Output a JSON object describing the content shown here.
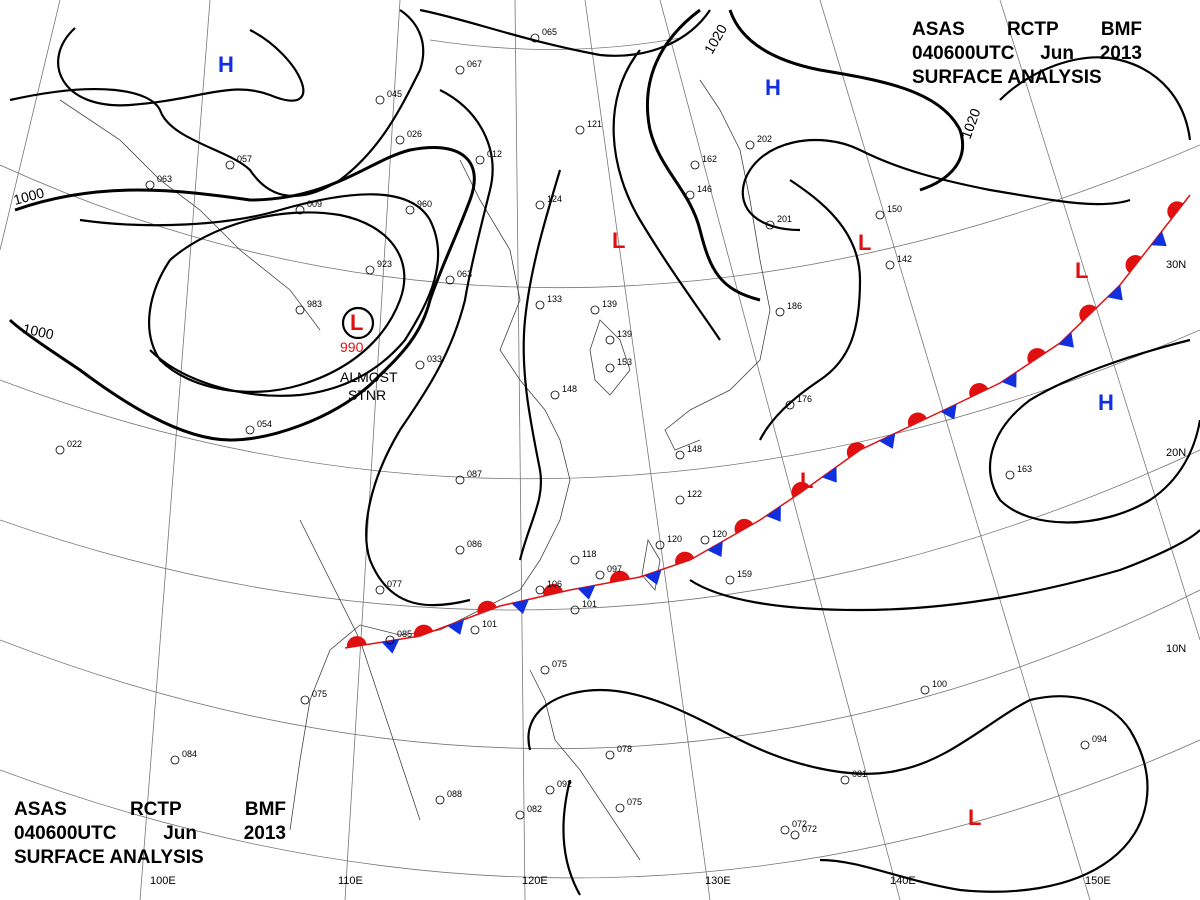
{
  "title_top_right": {
    "agency": "ASAS",
    "station": "RCTP",
    "unit": "BMF",
    "time": "040600UTC",
    "month": "Jun",
    "year": "2013",
    "product": "SURFACE ANALYSIS"
  },
  "title_bottom_left": {
    "agency": "ASAS",
    "station": "RCTP",
    "unit": "BMF",
    "time": "040600UTC",
    "month": "Jun",
    "year": "2013",
    "product": "SURFACE ANALYSIS"
  },
  "pressure_systems": [
    {
      "type": "H",
      "color": "#1030e0"
    },
    {
      "type": "H",
      "color": "#1030e0"
    },
    {
      "type": "H",
      "color": "#1030e0"
    },
    {
      "type": "L",
      "color": "#e01010",
      "central_pressure": "990"
    },
    {
      "type": "L",
      "color": "#e01010"
    },
    {
      "type": "L",
      "color": "#e01010"
    },
    {
      "type": "L",
      "color": "#e01010"
    },
    {
      "type": "L",
      "color": "#e01010"
    },
    {
      "type": "L",
      "color": "#e01010"
    }
  ],
  "annotation": {
    "line1": "ALMOST",
    "line2": "STNR"
  },
  "isobar_labels": [
    "1000",
    "1000",
    "1020",
    "1020"
  ],
  "lon_labels": [
    "100E",
    "110E",
    "120E",
    "130E",
    "140E",
    "150E"
  ],
  "lat_labels": [
    "30N",
    "20N",
    "10N"
  ],
  "front": {
    "type": "stationary",
    "warm_color": "#e01010",
    "cold_color": "#1030e0"
  },
  "station_numbers": [
    "065",
    "067",
    "045",
    "026",
    "009",
    "057",
    "063",
    "923",
    "983",
    "960",
    "012",
    "121",
    "124",
    "133",
    "139",
    "139",
    "153",
    "146",
    "162",
    "202",
    "201",
    "150",
    "186",
    "176",
    "148",
    "122",
    "120",
    "118",
    "106",
    "097",
    "101",
    "101",
    "086",
    "087",
    "085",
    "077",
    "075",
    "075",
    "084",
    "078",
    "072",
    "088",
    "082",
    "092",
    "075",
    "159",
    "163",
    "120",
    "100",
    "094",
    "081",
    "072",
    "142",
    "054",
    "022",
    "033",
    "063",
    "148"
  ]
}
